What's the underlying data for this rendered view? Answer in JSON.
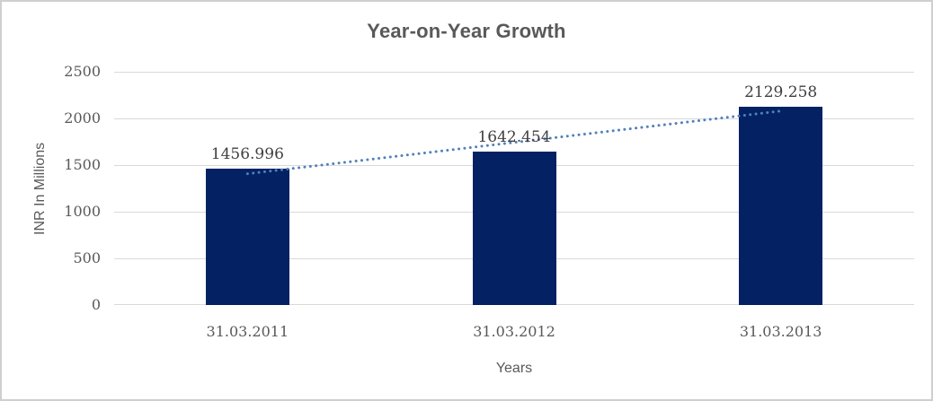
{
  "chart_data": {
    "type": "bar",
    "title": "Year-on-Year Growth",
    "xlabel": "Years",
    "ylabel": "INR In Millions",
    "categories": [
      "31.03.2011",
      "31.03.2012",
      "31.03.2013"
    ],
    "values": [
      1456.996,
      1642.454,
      2129.258
    ],
    "data_labels": [
      "1456.996",
      "1642.454",
      "2129.258"
    ],
    "yticks": [
      0,
      500,
      1000,
      1500,
      2000,
      2500
    ],
    "ytick_labels": [
      "0",
      "500",
      "1000",
      "1500",
      "2000",
      "2500"
    ],
    "ylim": [
      0,
      2500
    ],
    "grid": true,
    "legend": "none",
    "bar_color": "#032163",
    "trendline": {
      "type": "linear",
      "style": "dotted",
      "color": "#4f81bd"
    },
    "grid_color": "#d9d9d9",
    "text_color": "#595959",
    "data_label_color": "#3f3f3f"
  }
}
